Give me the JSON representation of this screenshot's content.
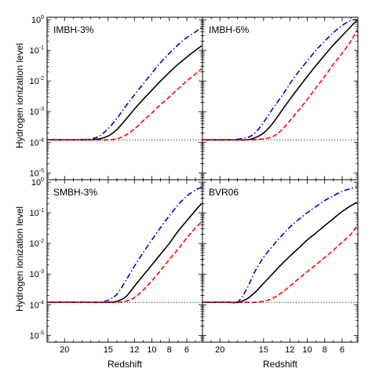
{
  "figure": {
    "ylabel": "Hydrogen ionization level",
    "xlabel": "Redshift"
  },
  "chart_data": [
    {
      "type": "line",
      "title": "IMBH-3%",
      "xlabel": "Redshift",
      "ylabel": "Hydrogen ionization level",
      "xlim": [
        22,
        4.2
      ],
      "ylim": [
        6e-06,
        1.2
      ],
      "yscale": "log",
      "xticks": [
        20,
        15,
        12,
        10,
        8,
        6
      ],
      "yticks": [
        1e-05,
        0.0001,
        0.001,
        0.01,
        0.1,
        1
      ],
      "series": [
        {
          "style": "dash-dot",
          "color": "#0000cc",
          "x": [
            22,
            19,
            17,
            16,
            15,
            14,
            13,
            12,
            11,
            10,
            9,
            8,
            7,
            6,
            5,
            4.3
          ],
          "y": [
            0.00012,
            0.00012,
            0.00013,
            0.00016,
            0.00028,
            0.0006,
            0.0015,
            0.0035,
            0.008,
            0.018,
            0.04,
            0.08,
            0.15,
            0.26,
            0.4,
            0.55
          ]
        },
        {
          "style": "solid",
          "color": "#000000",
          "x": [
            22,
            19,
            17,
            16,
            15,
            14,
            13,
            12,
            11,
            10,
            9,
            8,
            7,
            6,
            5,
            4.3
          ],
          "y": [
            0.00012,
            0.00012,
            0.00012,
            0.00013,
            0.00016,
            0.00026,
            0.00055,
            0.0012,
            0.0025,
            0.005,
            0.01,
            0.019,
            0.035,
            0.06,
            0.1,
            0.14
          ]
        },
        {
          "style": "dashed",
          "color": "#ff0000",
          "x": [
            22,
            19,
            17,
            16,
            15,
            14,
            13,
            12,
            11,
            10,
            9,
            8,
            7,
            6,
            5,
            4.3
          ],
          "y": [
            0.00012,
            0.00012,
            0.00012,
            0.00012,
            0.00012,
            0.00013,
            0.00017,
            0.00027,
            0.0005,
            0.0009,
            0.0017,
            0.003,
            0.0055,
            0.01,
            0.017,
            0.025
          ]
        },
        {
          "style": "dotted",
          "color": "#000000",
          "x": [
            22,
            4.2
          ],
          "y": [
            0.00012,
            0.00012
          ]
        }
      ]
    },
    {
      "type": "line",
      "title": "IMBH-6%",
      "xlabel": "Redshift",
      "ylabel": "",
      "xlim": [
        22,
        4.2
      ],
      "ylim": [
        6e-06,
        1.2
      ],
      "yscale": "log",
      "xticks": [
        20,
        15,
        12,
        10,
        8,
        6
      ],
      "yticks": [
        1e-05,
        0.0001,
        0.001,
        0.01,
        0.1,
        1
      ],
      "series": [
        {
          "style": "dash-dot",
          "color": "#0000cc",
          "x": [
            22,
            19,
            17,
            16,
            15,
            14,
            13,
            12,
            11,
            10,
            9,
            8,
            7,
            6,
            5,
            4.3
          ],
          "y": [
            0.00012,
            0.00012,
            0.00014,
            0.0002,
            0.00045,
            0.0012,
            0.003,
            0.008,
            0.02,
            0.045,
            0.1,
            0.2,
            0.38,
            0.65,
            0.95,
            1.0
          ]
        },
        {
          "style": "solid",
          "color": "#000000",
          "x": [
            22,
            19,
            17,
            16,
            15,
            14,
            13,
            12,
            11,
            10,
            9,
            8,
            7,
            6,
            5,
            4.3
          ],
          "y": [
            0.00012,
            0.00012,
            0.00012,
            0.00014,
            0.0002,
            0.0004,
            0.001,
            0.0025,
            0.006,
            0.014,
            0.032,
            0.07,
            0.15,
            0.3,
            0.6,
            0.95
          ]
        },
        {
          "style": "dashed",
          "color": "#ff0000",
          "x": [
            22,
            19,
            17,
            16,
            15,
            14,
            13,
            12,
            11,
            10,
            9,
            8,
            7,
            6,
            5,
            4.3
          ],
          "y": [
            0.00012,
            0.00012,
            0.00012,
            0.00012,
            0.00013,
            0.00015,
            0.00024,
            0.0005,
            0.0011,
            0.0025,
            0.006,
            0.014,
            0.035,
            0.08,
            0.2,
            0.45
          ]
        },
        {
          "style": "dotted",
          "color": "#000000",
          "x": [
            22,
            4.2
          ],
          "y": [
            0.00012,
            0.00012
          ]
        }
      ]
    },
    {
      "type": "line",
      "title": "SMBH-3%",
      "xlabel": "Redshift",
      "ylabel": "Hydrogen ionization level",
      "xlim": [
        22,
        4.2
      ],
      "ylim": [
        6e-06,
        1.2
      ],
      "yscale": "log",
      "xticks": [
        20,
        15,
        12,
        10,
        8,
        6
      ],
      "yticks": [
        1e-05,
        0.0001,
        0.001,
        0.01,
        0.1,
        1
      ],
      "series": [
        {
          "style": "dash-dot",
          "color": "#0000cc",
          "x": [
            22,
            19,
            17,
            16,
            15,
            14,
            13,
            12,
            11,
            10,
            9,
            8,
            7,
            6,
            5,
            4.3
          ],
          "y": [
            0.00012,
            0.00012,
            0.00012,
            0.00012,
            0.00014,
            0.00022,
            0.0006,
            0.0018,
            0.005,
            0.013,
            0.033,
            0.08,
            0.18,
            0.35,
            0.55,
            0.68
          ]
        },
        {
          "style": "solid",
          "color": "#000000",
          "x": [
            22,
            19,
            17,
            16,
            15,
            14,
            13,
            12,
            11,
            10,
            9,
            8,
            7,
            6,
            5,
            4.3
          ],
          "y": [
            0.00012,
            0.00012,
            0.00012,
            0.00012,
            0.00012,
            0.00013,
            0.00018,
            0.0004,
            0.0009,
            0.002,
            0.0045,
            0.01,
            0.025,
            0.055,
            0.12,
            0.2
          ]
        },
        {
          "style": "dashed",
          "color": "#ff0000",
          "x": [
            22,
            19,
            17,
            16,
            15,
            14,
            13,
            12,
            11,
            10,
            9,
            8,
            7,
            6,
            5,
            4.3
          ],
          "y": [
            0.00012,
            0.00012,
            0.00012,
            0.00012,
            0.00012,
            0.00012,
            0.00013,
            0.00017,
            0.0003,
            0.0006,
            0.0013,
            0.003,
            0.0065,
            0.015,
            0.032,
            0.05
          ]
        },
        {
          "style": "dotted",
          "color": "#000000",
          "x": [
            22,
            4.2
          ],
          "y": [
            0.00012,
            0.00012
          ]
        }
      ]
    },
    {
      "type": "line",
      "title": "BVR06",
      "xlabel": "Redshift",
      "ylabel": "",
      "xlim": [
        22,
        4.2
      ],
      "ylim": [
        6e-06,
        1.2
      ],
      "yscale": "log",
      "xticks": [
        20,
        15,
        12,
        10,
        8,
        6
      ],
      "yticks": [
        1e-05,
        0.0001,
        0.001,
        0.01,
        0.1,
        1
      ],
      "series": [
        {
          "style": "dash-dot",
          "color": "#0000cc",
          "x": [
            22,
            19,
            18,
            17,
            16,
            15,
            14,
            13,
            12,
            11,
            10,
            9,
            8,
            7,
            6,
            5,
            4.3
          ],
          "y": [
            0.00012,
            0.00012,
            0.00012,
            0.0003,
            0.0012,
            0.0035,
            0.008,
            0.017,
            0.034,
            0.06,
            0.1,
            0.16,
            0.25,
            0.36,
            0.5,
            0.62,
            0.7
          ]
        },
        {
          "style": "solid",
          "color": "#000000",
          "x": [
            22,
            19,
            18,
            17,
            16,
            15,
            14,
            13,
            12,
            11,
            10,
            9,
            8,
            7,
            6,
            5,
            4.3
          ],
          "y": [
            0.00012,
            0.00012,
            0.00012,
            0.00015,
            0.00025,
            0.0005,
            0.001,
            0.002,
            0.0038,
            0.007,
            0.013,
            0.022,
            0.038,
            0.065,
            0.11,
            0.17,
            0.22
          ]
        },
        {
          "style": "dashed",
          "color": "#ff0000",
          "x": [
            22,
            19,
            18,
            17,
            16,
            15,
            14,
            13,
            12,
            11,
            10,
            9,
            8,
            7,
            6,
            5,
            4.3
          ],
          "y": [
            0.00012,
            0.00012,
            0.00012,
            0.00012,
            0.00012,
            0.00013,
            0.00016,
            0.00024,
            0.0004,
            0.0007,
            0.0012,
            0.002,
            0.0035,
            0.006,
            0.011,
            0.02,
            0.038
          ]
        },
        {
          "style": "dotted",
          "color": "#000000",
          "x": [
            22,
            4.2
          ],
          "y": [
            0.00012,
            0.00012
          ]
        }
      ]
    }
  ]
}
